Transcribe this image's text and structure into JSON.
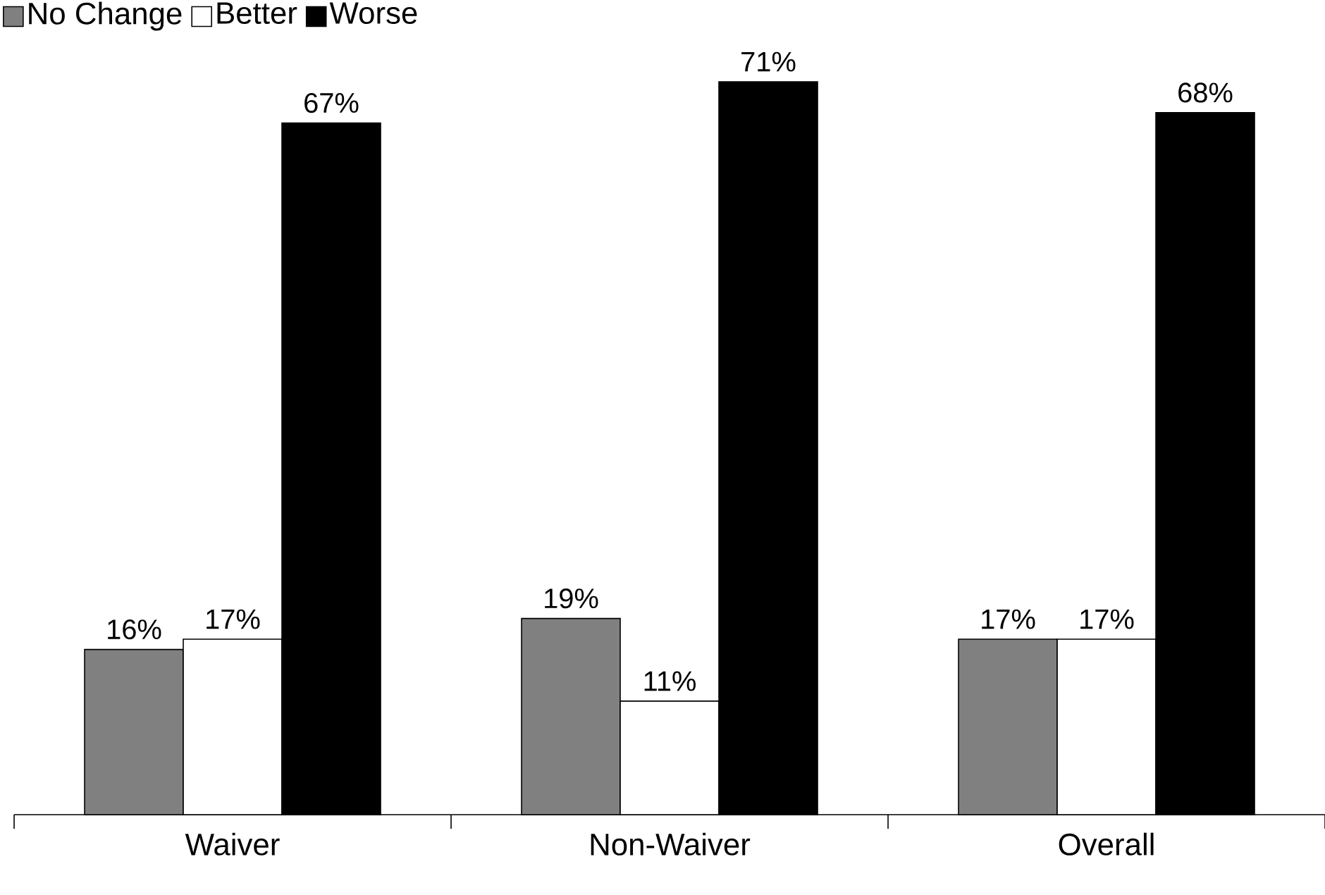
{
  "chart_data": {
    "type": "bar",
    "categories": [
      "Waiver",
      "Non-Waiver",
      "Overall"
    ],
    "series": [
      {
        "name": "No Change",
        "color": "#808080",
        "values": [
          16,
          19,
          17
        ],
        "value_labels": [
          "16%",
          "19%",
          "17%"
        ]
      },
      {
        "name": "Better",
        "color": "#ffffff",
        "values": [
          17,
          11,
          17
        ],
        "value_labels": [
          "17%",
          "11%",
          "17%"
        ]
      },
      {
        "name": "Worse",
        "color": "#000000",
        "values": [
          67,
          71,
          68
        ],
        "value_labels": [
          "67%",
          "71%",
          "68%"
        ]
      }
    ],
    "legend": "top left",
    "grid": false,
    "tick_labels": "x"
  }
}
